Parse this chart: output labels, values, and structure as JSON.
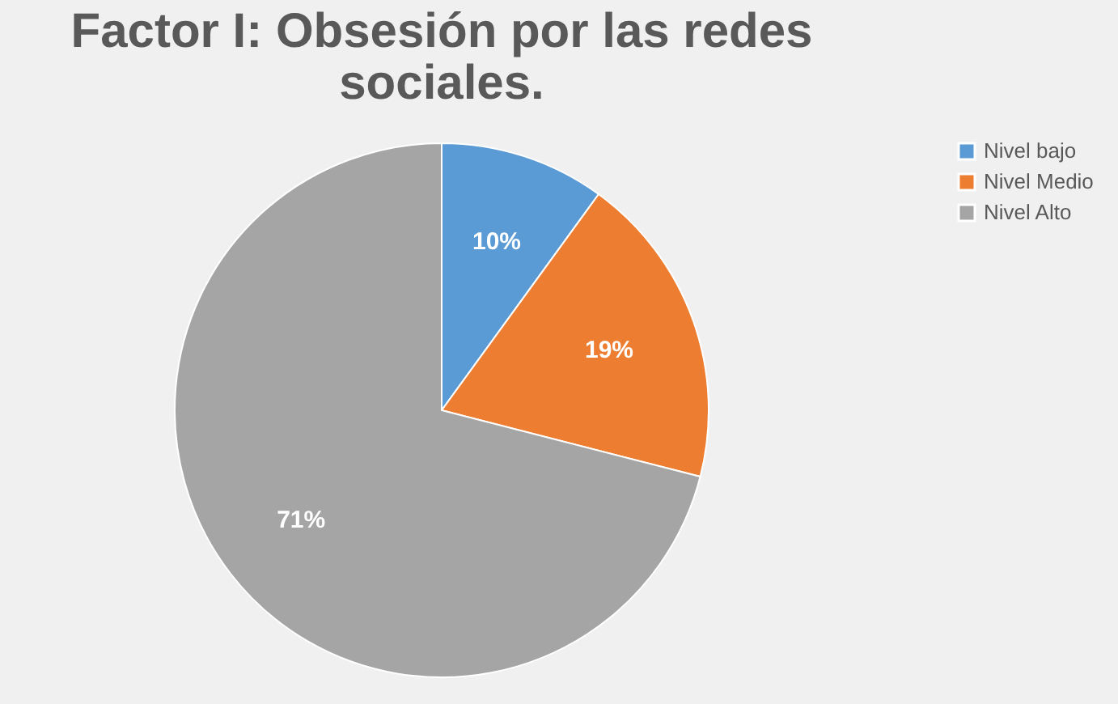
{
  "chart_data": {
    "type": "pie",
    "title": "Factor I: Obsesión por las redes sociales.",
    "categories": [
      "Nivel bajo",
      "Nivel Medio",
      "Nivel Alto"
    ],
    "values": [
      10,
      19,
      71
    ],
    "colors": [
      "#5b9bd5",
      "#ed7d31",
      "#a5a5a5"
    ],
    "value_labels": [
      "10%",
      "19%",
      "71%"
    ],
    "legend": "right"
  }
}
